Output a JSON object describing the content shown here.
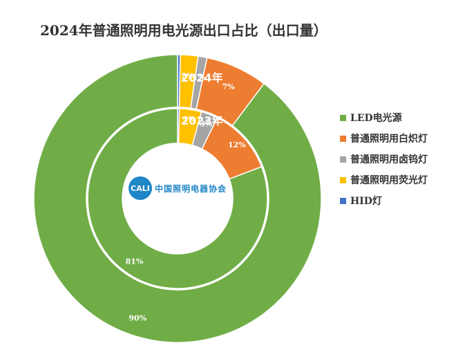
{
  "chart_data": {
    "type": "donut",
    "title": "2024年普通照明用电光源出口占比（出口量）",
    "categories": [
      "LED电光源",
      "普通照明用白炽灯",
      "普通照明用卤钨灯",
      "普通照明用荧光灯",
      "HID灯"
    ],
    "colors": [
      "#70ad47",
      "#ed7d31",
      "#a5a5a5",
      "#ffc000",
      "#4472c4"
    ],
    "series": [
      {
        "name": "2024年",
        "values": [
          90,
          7,
          1,
          2,
          0
        ],
        "labels": [
          "90%",
          "7%",
          "1%",
          "2%",
          ""
        ]
      },
      {
        "name": "2023年",
        "values": [
          81,
          12,
          3,
          4,
          0
        ],
        "labels": [
          "81%",
          "12%",
          "3%",
          "4%",
          ""
        ]
      }
    ],
    "legend": "right"
  },
  "logo": {
    "badge": "CALI",
    "text": "中国照明电器协会"
  }
}
